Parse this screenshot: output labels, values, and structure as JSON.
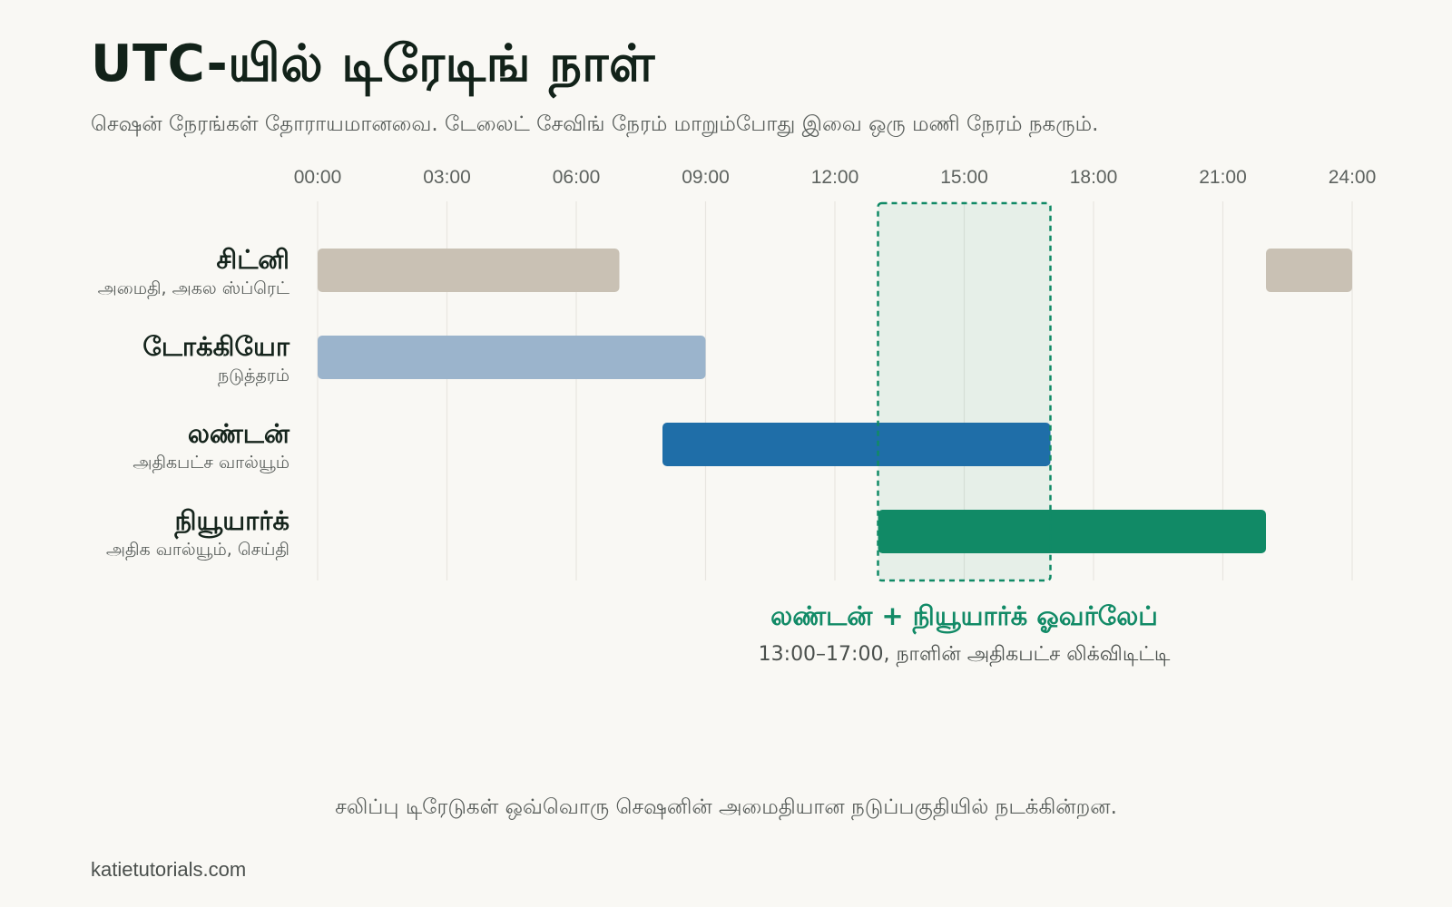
{
  "header": {
    "title": "UTC-யில் டிரேடிங் நாள்",
    "subtitle": "செஷன் நேரங்கள் தோராயமானவை. டேலைட் சேவிங் நேரம் மாறும்போது இவை ஒரு மணி நேரம் நகரும்."
  },
  "chart_data": {
    "type": "bar",
    "orientation": "horizontal-timeline",
    "x_unit": "hour (UTC)",
    "xlim": [
      0,
      24
    ],
    "xticks": [
      0,
      3,
      6,
      9,
      12,
      15,
      18,
      21,
      24
    ],
    "xtick_labels": [
      "00:00",
      "03:00",
      "06:00",
      "09:00",
      "12:00",
      "15:00",
      "18:00",
      "21:00",
      "24:00"
    ],
    "grid": true,
    "sessions": [
      {
        "name": "சிட்னி",
        "note": "அமைதி, அகல ஸ்ப்ரெட்",
        "color": "#c9c1b4",
        "segments": [
          [
            0,
            7
          ],
          [
            22,
            24
          ]
        ]
      },
      {
        "name": "டோக்கியோ",
        "note": "நடுத்தரம்",
        "color": "#9bb4cc",
        "segments": [
          [
            0,
            9
          ]
        ]
      },
      {
        "name": "லண்டன்",
        "note": "அதிகபட்ச வால்யூம்",
        "color": "#1f6ea8",
        "segments": [
          [
            8,
            17
          ]
        ]
      },
      {
        "name": "நியூயார்க்",
        "note": "அதிக வால்யூம், செய்தி",
        "color": "#118a66",
        "segments": [
          [
            13,
            22
          ]
        ]
      }
    ],
    "overlap": {
      "start": 13,
      "end": 17,
      "label": "லண்டன் + நியூயார்க் ஓவர்லேப்",
      "detail": "13:00–17:00, நாளின் அதிகபட்ச லிக்விடிட்டி",
      "color": "#118a66"
    }
  },
  "footer": {
    "note": "சலிப்பு டிரேடுகள் ஒவ்வொரு செஷனின் அமைதியான நடுப்பகுதியில் நடக்கின்றன.",
    "credit": "katietutorials.com"
  }
}
